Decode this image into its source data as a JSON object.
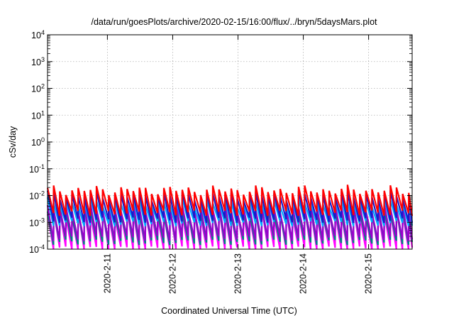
{
  "chart_data": {
    "type": "line",
    "title": "/data/run/goesPlots/archive/2020-02-15/16:00/flux/../bryn/5daysMars.plot",
    "xlabel": "Coordinated Universal Time (UTC)",
    "ylabel": "cSv/day",
    "y_scale": "log",
    "ylim": [
      0.0001,
      10000
    ],
    "y_ticks": [
      {
        "value": 0.0001,
        "base": "10",
        "exp": "-4"
      },
      {
        "value": 0.001,
        "base": "10",
        "exp": "-3"
      },
      {
        "value": 0.01,
        "base": "10",
        "exp": "-2"
      },
      {
        "value": 0.1,
        "base": "10",
        "exp": "-1"
      },
      {
        "value": 1,
        "base": "10",
        "exp": "0"
      },
      {
        "value": 10,
        "base": "10",
        "exp": "1"
      },
      {
        "value": 100,
        "base": "10",
        "exp": "2"
      },
      {
        "value": 1000,
        "base": "10",
        "exp": "3"
      },
      {
        "value": 10000,
        "base": "10",
        "exp": "4"
      }
    ],
    "xlim": [
      "2020-02-10T02:00",
      "2020-02-15T16:00"
    ],
    "x_ticks": [
      "2020-2-11",
      "2020-2-12",
      "2020-2-13",
      "2020-2-14",
      "2020-2-15"
    ],
    "x_tick_values": [
      "2020-02-11T00:00",
      "2020-02-12T00:00",
      "2020-02-13T00:00",
      "2020-02-14T00:00",
      "2020-02-15T00:00"
    ],
    "grid": true,
    "legend": "none",
    "sawtooth_period_hours": 2.25,
    "series": [
      {
        "color": "#ff0000",
        "peak": 0.016,
        "trough": 0.0022
      },
      {
        "color": "#1a1acc",
        "peak": 0.01,
        "trough": 0.0012
      },
      {
        "color": "#00aaff",
        "peak": 0.0055,
        "trough": 0.0009
      },
      {
        "color": "#9900cc",
        "peak": 0.0035,
        "trough": 0.00025
      },
      {
        "color": "#008080",
        "peak": 0.0026,
        "trough": 0.00018
      },
      {
        "color": "#ff00ff",
        "peak": 0.0022,
        "trough": 0.0001
      }
    ]
  }
}
